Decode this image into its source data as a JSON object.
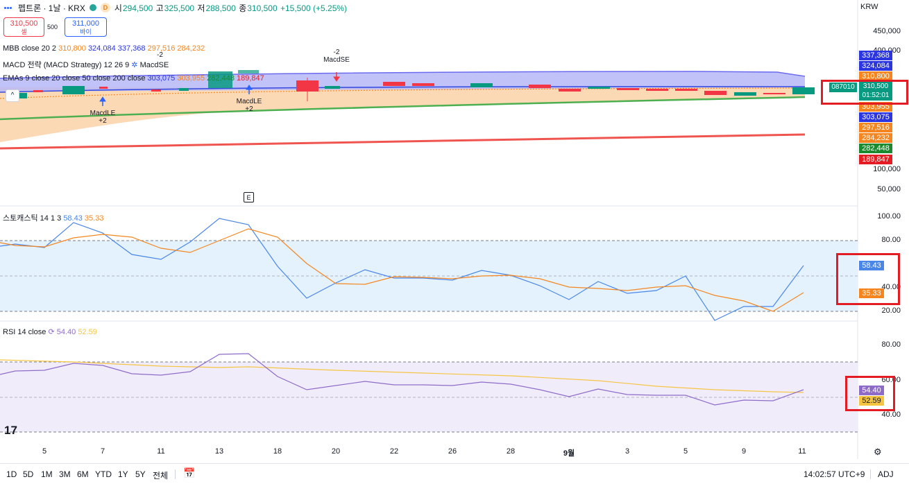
{
  "header": {
    "symbol": "펩트론 · 1날 · KRX",
    "badge_d": "D",
    "open_label": "시",
    "open": "294,500",
    "high_label": "고",
    "high": "325,500",
    "low_label": "저",
    "low": "288,500",
    "close_label": "종",
    "close": "310,500",
    "change": "+15,500 (+5.25%)"
  },
  "trade": {
    "sell_price": "310,500",
    "sell_label": "셀",
    "spread": "500",
    "buy_price": "311,000",
    "buy_label": "바이"
  },
  "currency": "KRW",
  "legends": {
    "mbb": {
      "name": "MBB close 20 2",
      "v1": "310,800",
      "v2": "324,084",
      "v3": "337,368",
      "v4": "297,516",
      "v5": "284,232"
    },
    "macd": {
      "name": "MACD 전략 (MACD Strategy) 12 26 9",
      "signal": "MacdSE"
    },
    "emas": {
      "name": "EMAs 9 close 20 close 50 close 200 close",
      "v1": "303,075",
      "v2": "303,955",
      "v3": "282,448",
      "v4": "189,847"
    },
    "stoch": {
      "name": "스토캐스틱 14 1 3",
      "k": "58.43",
      "d": "35.33"
    },
    "rsi": {
      "name": "RSI 14 close",
      "v1": "54.40",
      "v2": "52.59"
    }
  },
  "annotations": {
    "le1": "MacdLE",
    "le1n": "+2",
    "le2": "MacdLE",
    "le2n": "+2",
    "se1": "MacdSE",
    "se1n": "-2",
    "se2n": "-2",
    "earnings": "E"
  },
  "price_axis": {
    "ticks": [
      "450,000",
      "400,000",
      "100,000",
      "50,000"
    ],
    "labels": [
      {
        "text": "337,368",
        "color": "#2b35e0"
      },
      {
        "text": "324,084",
        "color": "#2b35e0"
      },
      {
        "text": "310,800",
        "color": "#f5861f"
      },
      {
        "text": "303,955",
        "color": "#f5861f"
      },
      {
        "text": "303,075",
        "color": "#2b35e0"
      },
      {
        "text": "297,516",
        "color": "#f5861f"
      },
      {
        "text": "284,232",
        "color": "#f5861f"
      },
      {
        "text": "282,448",
        "color": "#1b8a2e"
      },
      {
        "text": "189,847",
        "color": "#e51c23"
      }
    ],
    "current_code": "087010",
    "current_price": "310,500",
    "countdown": "01:52:01"
  },
  "stoch_axis": {
    "ticks": [
      "100.00",
      "80.00",
      "40.00",
      "20.00"
    ],
    "k_label": "58.43",
    "d_label": "35.33"
  },
  "rsi_axis": {
    "ticks": [
      "80.00",
      "60.00",
      "40.00"
    ],
    "l1": "54.40",
    "l2": "52.59"
  },
  "x_axis": [
    "5",
    "7",
    "11",
    "13",
    "18",
    "20",
    "22",
    "26",
    "28",
    "9월",
    "3",
    "5",
    "9",
    "11"
  ],
  "bottom": {
    "timeframes": [
      "1D",
      "5D",
      "1M",
      "3M",
      "6M",
      "YTD",
      "1Y",
      "5Y",
      "전체"
    ],
    "clock": "14:02:57 UTC+9",
    "adj": "ADJ"
  },
  "colors": {
    "up": "#089981",
    "down": "#f23645",
    "blue": "#2962ff",
    "orange": "#f5861f"
  }
}
